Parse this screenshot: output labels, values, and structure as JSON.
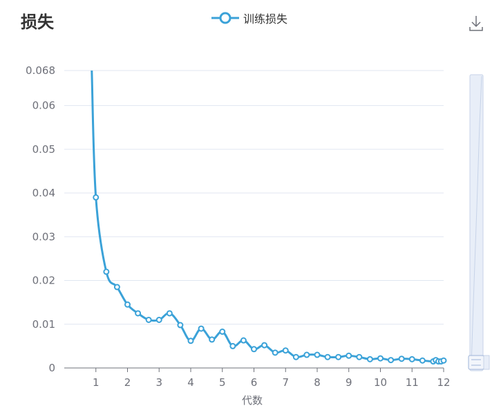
{
  "header": {
    "title": "损失",
    "legend_label": "训练损失",
    "download_icon": "download-icon"
  },
  "colors": {
    "series": "#3ba2d8",
    "grid": "#e0e6f1",
    "axis": "#6e7079",
    "zoom_fill": "#e8eef8",
    "zoom_border": "#c7d3e8"
  },
  "chart_data": {
    "type": "line",
    "title": "损失",
    "xlabel": "代数",
    "ylabel": "",
    "xlim": [
      0,
      12
    ],
    "ylim": [
      0,
      0.068
    ],
    "x_ticks": [
      1,
      2,
      3,
      4,
      5,
      6,
      7,
      8,
      9,
      10,
      11,
      12
    ],
    "y_ticks": [
      {
        "value": 0,
        "label": "0"
      },
      {
        "value": 0.01,
        "label": "0.01"
      },
      {
        "value": 0.02,
        "label": "0.02"
      },
      {
        "value": 0.03,
        "label": "0.03"
      },
      {
        "value": 0.04,
        "label": "0.04"
      },
      {
        "value": 0.05,
        "label": "0.05"
      },
      {
        "value": 0.06,
        "label": "0.06"
      },
      {
        "value": 0.068,
        "label": "0.068"
      }
    ],
    "legend_position": "top-center",
    "grid": true,
    "series": [
      {
        "name": "训练损失",
        "line_start": {
          "x": 0.87,
          "y": 0.068
        },
        "points": [
          {
            "x": 1.0,
            "y": 0.039
          },
          {
            "x": 1.33,
            "y": 0.022
          },
          {
            "x": 1.67,
            "y": 0.0185
          },
          {
            "x": 2.0,
            "y": 0.0145
          },
          {
            "x": 2.33,
            "y": 0.0125
          },
          {
            "x": 2.67,
            "y": 0.011
          },
          {
            "x": 3.0,
            "y": 0.011
          },
          {
            "x": 3.33,
            "y": 0.0125
          },
          {
            "x": 3.67,
            "y": 0.0098
          },
          {
            "x": 4.0,
            "y": 0.0062
          },
          {
            "x": 4.33,
            "y": 0.009
          },
          {
            "x": 4.67,
            "y": 0.0065
          },
          {
            "x": 5.0,
            "y": 0.0083
          },
          {
            "x": 5.33,
            "y": 0.005
          },
          {
            "x": 5.67,
            "y": 0.0063
          },
          {
            "x": 6.0,
            "y": 0.0043
          },
          {
            "x": 6.33,
            "y": 0.0052
          },
          {
            "x": 6.67,
            "y": 0.0035
          },
          {
            "x": 7.0,
            "y": 0.004
          },
          {
            "x": 7.33,
            "y": 0.0025
          },
          {
            "x": 7.67,
            "y": 0.003
          },
          {
            "x": 8.0,
            "y": 0.003
          },
          {
            "x": 8.33,
            "y": 0.0025
          },
          {
            "x": 8.67,
            "y": 0.0025
          },
          {
            "x": 9.0,
            "y": 0.0028
          },
          {
            "x": 9.33,
            "y": 0.0025
          },
          {
            "x": 9.67,
            "y": 0.002
          },
          {
            "x": 10.0,
            "y": 0.0022
          },
          {
            "x": 10.33,
            "y": 0.0018
          },
          {
            "x": 10.67,
            "y": 0.0021
          },
          {
            "x": 11.0,
            "y": 0.002
          },
          {
            "x": 11.33,
            "y": 0.0017
          },
          {
            "x": 11.67,
            "y": 0.0015
          },
          {
            "x": 12.0,
            "y": 0.0018
          },
          {
            "x": 12.0,
            "y": 0.0015
          },
          {
            "x": 12.0,
            "y": 0.0015
          },
          {
            "x": 12.0,
            "y": 0.0017
          }
        ]
      }
    ]
  }
}
